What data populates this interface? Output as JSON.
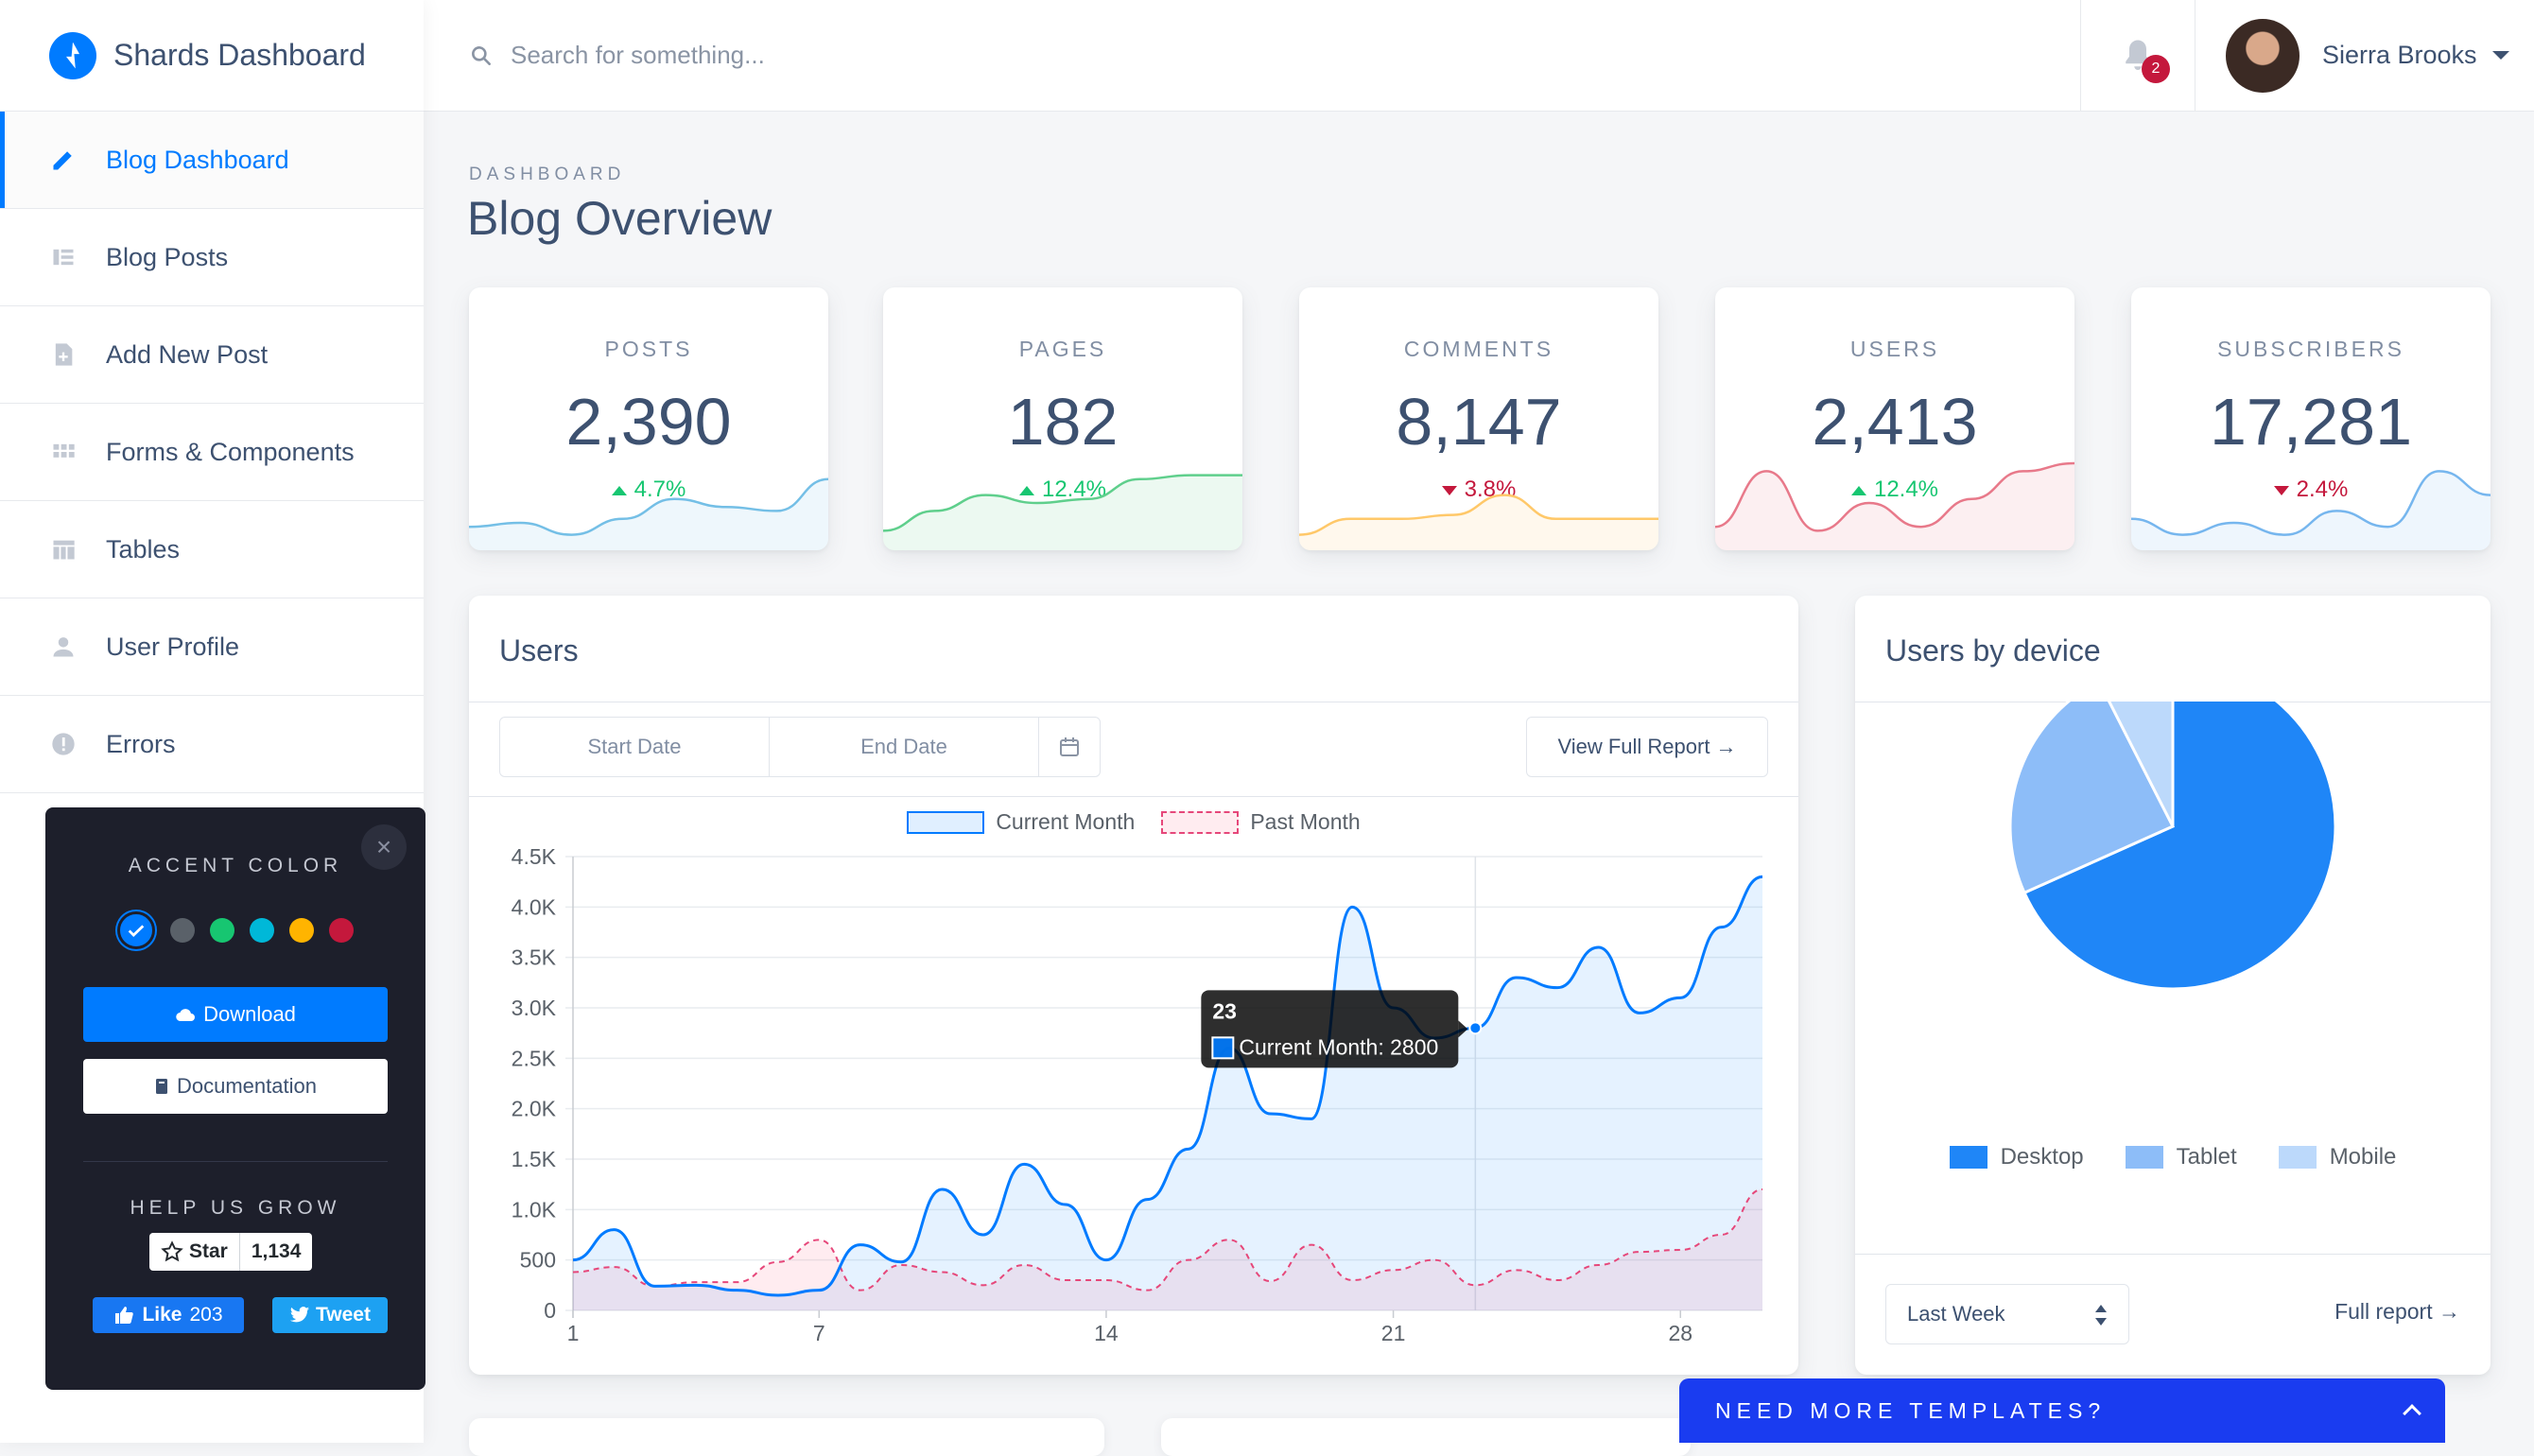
{
  "brand": {
    "name": "Shards Dashboard"
  },
  "sidebar": {
    "items": [
      {
        "label": "Blog Dashboard",
        "icon": "pencil-icon",
        "active": true
      },
      {
        "label": "Blog Posts",
        "icon": "list-icon"
      },
      {
        "label": "Add New Post",
        "icon": "note-add-icon"
      },
      {
        "label": "Forms & Components",
        "icon": "grid-icon"
      },
      {
        "label": "Tables",
        "icon": "table-icon"
      },
      {
        "label": "User Profile",
        "icon": "person-icon"
      },
      {
        "label": "Errors",
        "icon": "error-icon"
      }
    ]
  },
  "topbar": {
    "search_placeholder": "Search for something...",
    "notifications": "2",
    "user_name": "Sierra Brooks"
  },
  "page": {
    "subtitle": "DASHBOARD",
    "title": "Blog Overview"
  },
  "stats": [
    {
      "label": "POSTS",
      "value": "2,390",
      "change": "4.7%",
      "direction": "up",
      "color": "#74bfe6"
    },
    {
      "label": "PAGES",
      "value": "182",
      "change": "12.4%",
      "direction": "up",
      "color": "#5fcf8c"
    },
    {
      "label": "COMMENTS",
      "value": "8,147",
      "change": "3.8%",
      "direction": "down",
      "color": "#ffc869"
    },
    {
      "label": "USERS",
      "value": "2,413",
      "change": "12.4%",
      "direction": "up",
      "color": "#e8798a"
    },
    {
      "label": "SUBSCRIBERS",
      "value": "17,281",
      "change": "2.4%",
      "direction": "down",
      "color": "#76b6ee"
    }
  ],
  "users_card": {
    "title": "Users",
    "start_date": "Start Date",
    "end_date": "End Date",
    "view_report": "View Full Report →",
    "tooltip_title": "23",
    "tooltip_body": "Current Month: 2800"
  },
  "chart_data": {
    "type": "line",
    "x": [
      1,
      2,
      3,
      4,
      5,
      6,
      7,
      8,
      9,
      10,
      11,
      12,
      13,
      14,
      15,
      16,
      17,
      18,
      19,
      20,
      21,
      22,
      23,
      24,
      25,
      26,
      27,
      28,
      29,
      30
    ],
    "xticks": [
      "1",
      "7",
      "14",
      "21",
      "28"
    ],
    "yticks": [
      "0",
      "500",
      "1.0K",
      "1.5K",
      "2.0K",
      "2.5K",
      "3.0K",
      "3.5K",
      "4.0K",
      "4.5K"
    ],
    "ylim": [
      0,
      4500
    ],
    "series": [
      {
        "name": "Current Month",
        "values": [
          500,
          800,
          240,
          250,
          200,
          150,
          200,
          650,
          480,
          1200,
          750,
          1450,
          1050,
          500,
          1100,
          1600,
          2600,
          1950,
          1900,
          4000,
          3000,
          2700,
          2800,
          3300,
          3200,
          3600,
          2950,
          3100,
          3800,
          4300
        ],
        "color": "#007bff"
      },
      {
        "name": "Past Month",
        "values": [
          380,
          430,
          240,
          280,
          280,
          480,
          700,
          200,
          450,
          380,
          250,
          450,
          300,
          300,
          200,
          500,
          700,
          290,
          650,
          300,
          400,
          500,
          250,
          400,
          300,
          450,
          580,
          600,
          750,
          1200
        ],
        "color": "#e6477a"
      }
    ]
  },
  "device_card": {
    "title": "Users by device",
    "select_value": "Last Week",
    "full_report": "Full report →",
    "chart_data": {
      "type": "pie",
      "labels": [
        "Desktop",
        "Tablet",
        "Mobile"
      ],
      "values": [
        68.3,
        24.2,
        7.5
      ],
      "colors": [
        "#1f86f7",
        "#8dbdf8",
        "#bcd9fb"
      ]
    }
  },
  "accent_panel": {
    "heading": "ACCENT COLOR",
    "colors": [
      "#007bff",
      "#5a6169",
      "#17c671",
      "#00b8d8",
      "#ffb400",
      "#c4183c"
    ],
    "download": "Download",
    "documentation": "Documentation",
    "help_heading": "HELP US GROW",
    "star_label": "Star",
    "star_count": "1,134",
    "like_label": "Like",
    "like_count": "203",
    "tweet_label": "Tweet"
  },
  "promo": {
    "label": "NEED MORE TEMPLATES?"
  }
}
